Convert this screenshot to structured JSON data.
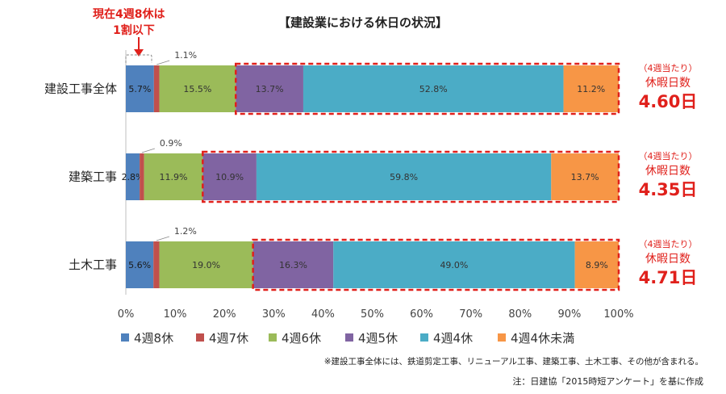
{
  "chart_data": {
    "type": "bar",
    "orientation": "horizontal",
    "stacked": true,
    "title": "【建設業における休日の状況】",
    "categories": [
      "建設工事全体",
      "建築工事",
      "土木工事"
    ],
    "series": [
      {
        "name": "4週8休",
        "color": "#4f81bd",
        "values": [
          5.7,
          2.8,
          5.6
        ],
        "labels": [
          "5.7%",
          "2.8%",
          "5.6%"
        ]
      },
      {
        "name": "4週7休",
        "color": "#c0504d",
        "values": [
          1.1,
          0.9,
          1.2
        ],
        "labels": [
          "1.1%",
          "0.9%",
          "1.2%"
        ]
      },
      {
        "name": "4週6休",
        "color": "#9bbb59",
        "values": [
          15.5,
          11.9,
          19.0
        ],
        "labels": [
          "15.5%",
          "11.9%",
          "19.0%"
        ]
      },
      {
        "name": "4週5休",
        "color": "#8064a2",
        "values": [
          13.7,
          10.9,
          16.3
        ],
        "labels": [
          "13.7%",
          "10.9%",
          "16.3%"
        ]
      },
      {
        "name": "4週4休",
        "color": "#4bacc6",
        "values": [
          52.8,
          59.8,
          49.0
        ],
        "labels": [
          "52.8%",
          "59.8%",
          "49.0%"
        ]
      },
      {
        "name": "4週4休未満",
        "color": "#f79646",
        "values": [
          11.2,
          13.7,
          8.9
        ],
        "labels": [
          "11.2%",
          "13.7%",
          "8.9%"
        ]
      }
    ],
    "xlim": [
      0,
      100
    ],
    "xticks": [
      "0%",
      "10%",
      "20%",
      "30%",
      "40%",
      "50%",
      "60%",
      "70%",
      "80%",
      "90%",
      "100%"
    ],
    "grid": false,
    "legend_position": "bottom",
    "highlight_from_series": 3,
    "highlight_color": "#e0201b",
    "annotations": {
      "callout_top": [
        "現在4週8休は",
        "1割以下"
      ],
      "callout_color": "#e0201b",
      "right_label_small": "（4週当たり）",
      "right_label_title": "休暇日数",
      "right_values": [
        "4.60日",
        "4.35日",
        "4.71日"
      ]
    },
    "footnotes": [
      "※建設工事全体には、鉄道剪定工事、リニューアル工事、建築工事、土木工事、その他が含まれる。",
      "注：日建協「2015時短アンケート」を基に作成"
    ]
  }
}
